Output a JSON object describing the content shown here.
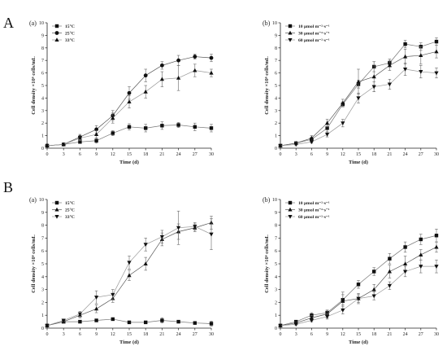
{
  "section_labels": [
    "A",
    "B"
  ],
  "chart_data": [
    {
      "type": "line",
      "panel_label": "(a)",
      "xlabel": "Time (d)",
      "ylabel": "Cell density ×10⁶ cells/mL",
      "x": [
        0,
        3,
        6,
        9,
        12,
        15,
        18,
        21,
        24,
        27,
        30
      ],
      "xlim": [
        0,
        30
      ],
      "ylim": [
        0,
        10
      ],
      "xticks": [
        "0",
        "3",
        "6",
        "9",
        "12",
        "15",
        "18",
        "21",
        "24",
        "27",
        "30"
      ],
      "yticks": [
        "0",
        "1",
        "2",
        "3",
        "4",
        "5",
        "6",
        "7",
        "8",
        "9",
        "10"
      ],
      "legend_position": "top-left",
      "series": [
        {
          "name": "15°C",
          "marker": "square",
          "values": [
            0.2,
            0.3,
            0.5,
            0.6,
            1.2,
            1.7,
            1.6,
            1.8,
            1.85,
            1.7,
            1.6
          ],
          "errors": [
            0.05,
            0.1,
            0.1,
            0.2,
            0.2,
            0.25,
            0.3,
            0.3,
            0.2,
            0.3,
            0.3
          ]
        },
        {
          "name": "25°C",
          "marker": "circle",
          "values": [
            0.2,
            0.3,
            0.9,
            1.5,
            2.6,
            4.4,
            5.8,
            6.6,
            7.0,
            7.3,
            7.2
          ],
          "errors": [
            0.05,
            0.1,
            0.2,
            0.3,
            0.4,
            0.5,
            0.5,
            0.3,
            0.4,
            0.2,
            0.3
          ]
        },
        {
          "name": "33°C",
          "marker": "triangle-up",
          "values": [
            0.2,
            0.3,
            0.8,
            1.1,
            2.4,
            3.7,
            4.5,
            5.5,
            5.6,
            6.2,
            6.0
          ],
          "errors": [
            0.05,
            0.1,
            0.2,
            0.3,
            0.4,
            0.5,
            0.5,
            0.6,
            1.0,
            0.5,
            0.3
          ]
        }
      ]
    },
    {
      "type": "line",
      "panel_label": "(b)",
      "xlabel": "Time (d)",
      "ylabel": "Cell density ×10⁶ cells/mL",
      "x": [
        0,
        3,
        6,
        9,
        12,
        15,
        18,
        21,
        24,
        27,
        30
      ],
      "xlim": [
        0,
        30
      ],
      "ylim": [
        0,
        10
      ],
      "xticks": [
        "0",
        "3",
        "6",
        "9",
        "12",
        "15",
        "18",
        "21",
        "24",
        "27",
        "30"
      ],
      "yticks": [
        "0",
        "1",
        "2",
        "3",
        "4",
        "5",
        "6",
        "7",
        "8",
        "9",
        "10"
      ],
      "legend_position": "top-left",
      "series": [
        {
          "name": "10 μmol m⁻²·s⁻¹",
          "marker": "square",
          "values": [
            0.2,
            0.4,
            0.7,
            1.6,
            3.5,
            5.1,
            6.5,
            6.8,
            8.3,
            8.1,
            8.5
          ],
          "errors": [
            0.05,
            0.1,
            0.2,
            0.3,
            0.2,
            0.3,
            0.4,
            0.3,
            0.3,
            0.3,
            0.3
          ]
        },
        {
          "name": "30 μmol m⁻²·s⁻¹",
          "marker": "triangle-up",
          "values": [
            0.2,
            0.4,
            0.8,
            2.0,
            3.6,
            5.3,
            5.7,
            6.6,
            7.3,
            7.4,
            7.7
          ],
          "errors": [
            0.05,
            0.1,
            0.2,
            0.3,
            0.3,
            1.0,
            1.2,
            0.4,
            0.6,
            0.7,
            0.5
          ]
        },
        {
          "name": "60 μmol m⁻²·s⁻¹",
          "marker": "triangle-down",
          "values": [
            0.2,
            0.3,
            0.5,
            1.1,
            2.0,
            4.0,
            4.9,
            5.1,
            6.3,
            6.1,
            6.0
          ],
          "errors": [
            0.05,
            0.1,
            0.1,
            0.2,
            0.3,
            0.4,
            0.4,
            0.4,
            0.5,
            0.5,
            0.4
          ]
        }
      ]
    },
    {
      "type": "line",
      "panel_label": "(a)",
      "xlabel": "Time (d)",
      "ylabel": "Cell density ×10⁶ cells/mL",
      "x": [
        0,
        3,
        6,
        9,
        12,
        15,
        18,
        21,
        24,
        27,
        30
      ],
      "xlim": [
        0,
        30
      ],
      "ylim": [
        0,
        10
      ],
      "xticks": [
        "0",
        "3",
        "6",
        "9",
        "12",
        "15",
        "18",
        "21",
        "24",
        "27",
        "30"
      ],
      "yticks": [
        "0",
        "1",
        "2",
        "3",
        "4",
        "5",
        "6",
        "7",
        "8",
        "9",
        "10"
      ],
      "legend_position": "top-left",
      "series": [
        {
          "name": "15°C",
          "marker": "square",
          "values": [
            0.2,
            0.5,
            0.5,
            0.6,
            0.7,
            0.45,
            0.45,
            0.6,
            0.5,
            0.4,
            0.35
          ],
          "errors": [
            0.05,
            0.1,
            0.1,
            0.1,
            0.1,
            0.1,
            0.1,
            0.2,
            0.1,
            0.1,
            0.2
          ]
        },
        {
          "name": "25°C",
          "marker": "triangle-up",
          "values": [
            0.2,
            0.5,
            1.0,
            1.5,
            2.3,
            4.1,
            5.0,
            6.9,
            7.5,
            7.8,
            8.2
          ],
          "errors": [
            0.05,
            0.1,
            0.2,
            0.3,
            0.3,
            0.4,
            0.5,
            0.5,
            0.6,
            0.3,
            0.5
          ]
        },
        {
          "name": "33°C",
          "marker": "triangle-down",
          "values": [
            0.2,
            0.6,
            1.1,
            2.4,
            2.6,
            5.1,
            6.5,
            7.1,
            7.8,
            7.9,
            7.3
          ],
          "errors": [
            0.05,
            0.1,
            0.2,
            0.5,
            0.4,
            0.5,
            0.5,
            0.5,
            1.3,
            0.3,
            1.2
          ]
        }
      ]
    },
    {
      "type": "line",
      "panel_label": "(b)",
      "xlabel": "Time (d)",
      "ylabel": "Cell density ×10⁶ cells/mL",
      "x": [
        0,
        3,
        6,
        9,
        12,
        15,
        18,
        21,
        24,
        27,
        30
      ],
      "xlim": [
        0,
        30
      ],
      "ylim": [
        0,
        10
      ],
      "xticks": [
        "0",
        "3",
        "6",
        "9",
        "12",
        "15",
        "18",
        "21",
        "24",
        "27",
        "30"
      ],
      "yticks": [
        "0",
        "1",
        "2",
        "3",
        "4",
        "5",
        "6",
        "7",
        "8",
        "9",
        "10"
      ],
      "legend_position": "top-left",
      "series": [
        {
          "name": "10 μmol m⁻²·s⁻¹",
          "marker": "square",
          "values": [
            0.2,
            0.5,
            1.0,
            1.2,
            2.2,
            3.4,
            4.4,
            5.4,
            6.3,
            6.9,
            7.2
          ],
          "errors": [
            0.05,
            0.1,
            0.2,
            0.2,
            0.4,
            0.3,
            0.3,
            0.4,
            0.4,
            0.4,
            0.5
          ]
        },
        {
          "name": "30 μmol m⁻²·s⁻¹",
          "marker": "triangle-up",
          "values": [
            0.2,
            0.4,
            0.8,
            1.1,
            2.1,
            2.3,
            3.0,
            4.4,
            5.0,
            5.7,
            6.3
          ],
          "errors": [
            0.05,
            0.1,
            0.2,
            0.3,
            0.7,
            0.4,
            0.4,
            0.5,
            0.6,
            0.4,
            0.4
          ]
        },
        {
          "name": "60 μmol m⁻²·s⁻¹",
          "marker": "triangle-down",
          "values": [
            0.2,
            0.3,
            0.6,
            0.9,
            1.4,
            2.3,
            2.5,
            3.3,
            4.4,
            4.8,
            4.8
          ],
          "errors": [
            0.05,
            0.1,
            0.1,
            0.2,
            0.3,
            0.3,
            0.3,
            0.3,
            0.4,
            0.5,
            0.5
          ]
        }
      ]
    }
  ]
}
